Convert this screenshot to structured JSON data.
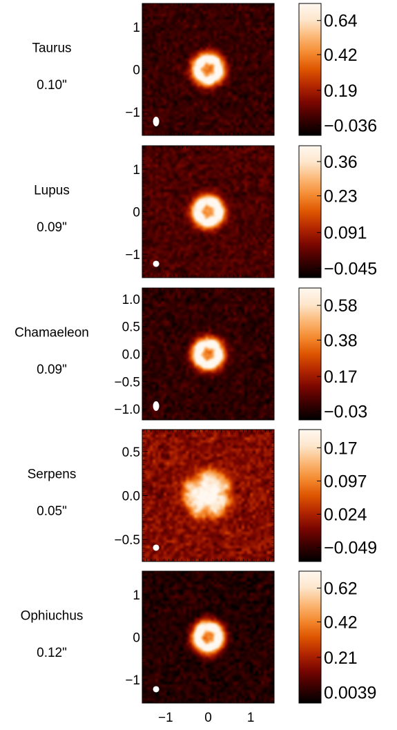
{
  "colors": {
    "colormap": [
      "#000000",
      "#3a0000",
      "#7a0600",
      "#b32600",
      "#de5500",
      "#f48a30",
      "#fbb877",
      "#fde6cc",
      "#fff8f0"
    ],
    "beam": "#ffffff",
    "axis": "#000000"
  },
  "chart_data": [
    {
      "type": "heatmap",
      "name": "Taurus",
      "resolution": "0.10\"",
      "yticks": [
        "1",
        "0",
        "−1"
      ],
      "ytick_values": [
        1,
        0,
        -1
      ],
      "ylim": [
        -1.55,
        1.55
      ],
      "xlim": [
        -1.55,
        1.55
      ],
      "colorbar_ticks": [
        "0.64",
        "0.42",
        "0.19",
        "−0.036"
      ],
      "colorbar_values": [
        0.64,
        0.42,
        0.19,
        -0.036
      ],
      "colorbar_range": [
        -0.1,
        0.75
      ],
      "structure": "ring",
      "beam_shape": "elongated"
    },
    {
      "type": "heatmap",
      "name": "Lupus",
      "resolution": "0.09\"",
      "yticks": [
        "1",
        "0",
        "−1"
      ],
      "ytick_values": [
        1,
        0,
        -1
      ],
      "ylim": [
        -1.55,
        1.55
      ],
      "xlim": [
        -1.55,
        1.55
      ],
      "colorbar_ticks": [
        "0.36",
        "0.23",
        "0.091",
        "−0.045"
      ],
      "colorbar_values": [
        0.36,
        0.23,
        0.091,
        -0.045
      ],
      "colorbar_range": [
        -0.08,
        0.42
      ],
      "structure": "ring",
      "beam_shape": "round"
    },
    {
      "type": "heatmap",
      "name": "Chamaeleon",
      "resolution": "0.09\"",
      "yticks": [
        "1.0",
        "0.5",
        "0.0",
        "−0.5",
        "−1.0"
      ],
      "ytick_values": [
        1.0,
        0.5,
        0.0,
        -0.5,
        -1.0
      ],
      "ylim": [
        -1.2,
        1.2
      ],
      "xlim": [
        -1.2,
        1.2
      ],
      "colorbar_ticks": [
        "0.58",
        "0.38",
        "0.17",
        "−0.03"
      ],
      "colorbar_values": [
        0.58,
        0.38,
        0.17,
        -0.03
      ],
      "colorbar_range": [
        -0.08,
        0.68
      ],
      "structure": "ring",
      "beam_shape": "elongated"
    },
    {
      "type": "heatmap",
      "name": "Serpens",
      "resolution": "0.05\"",
      "yticks": [
        "0.5",
        "0.0",
        "−0.5"
      ],
      "ytick_values": [
        0.5,
        0.0,
        -0.5
      ],
      "ylim": [
        -0.75,
        0.75
      ],
      "xlim": [
        -0.75,
        0.75
      ],
      "colorbar_ticks": [
        "0.17",
        "0.097",
        "0.024",
        "−0.049"
      ],
      "colorbar_values": [
        0.17,
        0.097,
        0.024,
        -0.049
      ],
      "colorbar_range": [
        -0.08,
        0.21
      ],
      "structure": "clumpy",
      "beam_shape": "round"
    },
    {
      "type": "heatmap",
      "name": "Ophiuchus",
      "resolution": "0.12\"",
      "yticks": [
        "1",
        "0",
        "−1"
      ],
      "ytick_values": [
        1,
        0,
        -1
      ],
      "ylim": [
        -1.55,
        1.55
      ],
      "xlim": [
        -1.55,
        1.55
      ],
      "xticks": [
        "−1",
        "0",
        "1"
      ],
      "xtick_values": [
        -1,
        0,
        1
      ],
      "colorbar_ticks": [
        "0.62",
        "0.42",
        "0.21",
        "0.0039"
      ],
      "colorbar_values": [
        0.62,
        0.42,
        0.21,
        0.0039
      ],
      "colorbar_range": [
        -0.06,
        0.72
      ],
      "structure": "ring",
      "beam_shape": "round"
    }
  ]
}
